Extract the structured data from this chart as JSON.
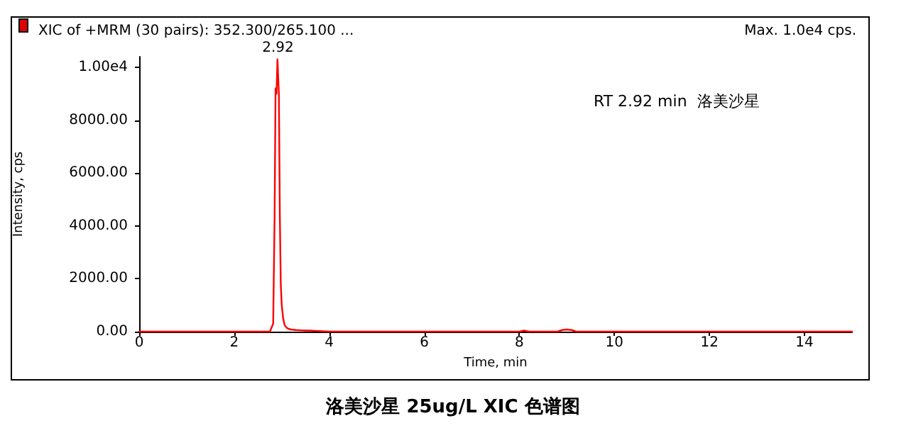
{
  "chart_data": {
    "type": "line",
    "title": "XIC of +MRM (30 pairs): 352.300/265.100 ...",
    "subtitle": "Max. 1.0e4 cps.",
    "xlabel": "Time, min",
    "ylabel": "Intensity, cps",
    "annotations": [
      {
        "text": "2.92",
        "x": 2.92,
        "y": 10300
      },
      "RT 2.92 min  洛美沙星",
      "洛美沙星 25ug/L XIC 色谱图"
    ],
    "series": [
      {
        "color": "#ff0000",
        "x": [
          0.0,
          0.5,
          1.0,
          1.5,
          2.0,
          2.5,
          2.75,
          2.82,
          2.85,
          2.87,
          2.89,
          2.91,
          2.92,
          2.94,
          2.96,
          2.98,
          3.0,
          3.03,
          3.06,
          3.1,
          3.15,
          3.2,
          3.3,
          3.4,
          3.5,
          3.6,
          3.7,
          3.8,
          4.0,
          5.0,
          6.0,
          7.0,
          8.0,
          8.1,
          8.2,
          8.8,
          8.9,
          9.0,
          9.1,
          9.2,
          10.0,
          11.0,
          12.0,
          13.0,
          14.0,
          15.0
        ],
        "values": [
          0,
          0,
          0,
          0,
          0,
          0,
          0,
          300,
          4400,
          9200,
          9000,
          10300,
          10300,
          9000,
          4400,
          1800,
          1000,
          500,
          250,
          150,
          100,
          80,
          60,
          50,
          40,
          40,
          30,
          20,
          0,
          0,
          0,
          0,
          0,
          40,
          0,
          0,
          60,
          80,
          60,
          0,
          0,
          0,
          0,
          0,
          0,
          0
        ]
      }
    ],
    "xlim": [
      0,
      15
    ],
    "xticks": [
      0,
      2,
      4,
      6,
      8,
      10,
      12,
      14
    ],
    "ylim": [
      0,
      10400
    ],
    "yticks": [
      {
        "value": 0,
        "label": "0.00"
      },
      {
        "value": 2000,
        "label": "2000.00"
      },
      {
        "value": 4000,
        "label": "4000.00"
      },
      {
        "value": 6000,
        "label": "6000.00"
      },
      {
        "value": 8000,
        "label": "8000.00"
      },
      {
        "value": 10000,
        "label": "1.00e4"
      }
    ],
    "grid": false,
    "marker": "none",
    "line_style": "solid"
  }
}
